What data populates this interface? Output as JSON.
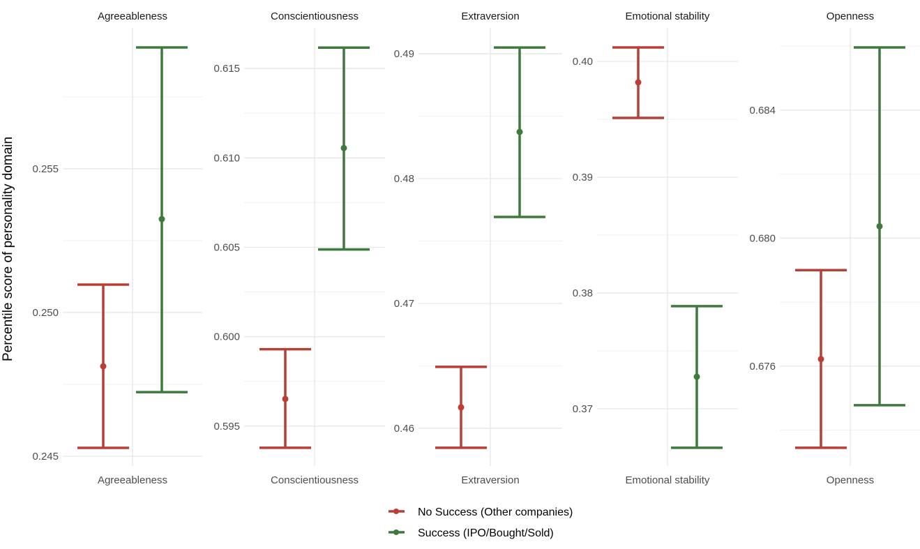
{
  "chart_data": {
    "type": "errorbar",
    "ylabel": "Percentile score of personality domain",
    "legend": {
      "placement": "bottom",
      "entries": [
        {
          "name": "No Success (Other companies)",
          "color": "#B93E36"
        },
        {
          "name": "Success (IPO/Bought/Sold)",
          "color": "#3E7A3E"
        }
      ]
    },
    "grid": true,
    "panels": [
      {
        "title": "Agreeableness",
        "xlabel": "Agreeableness",
        "ylim": [
          0.24466,
          0.2599
        ],
        "ticks": [
          0.245,
          0.25,
          0.255
        ],
        "tick_labels": [
          "0.245",
          "0.250",
          "0.255"
        ],
        "series": [
          {
            "mean": 0.24813,
            "lower": 0.24529,
            "upper": 0.25097
          },
          {
            "mean": 0.25325,
            "lower": 0.24723,
            "upper": 0.25922
          }
        ]
      },
      {
        "title": "Conscientiousness",
        "xlabel": "Conscientiousness",
        "ylim": [
          0.59277,
          0.61727
        ],
        "ticks": [
          0.595,
          0.6,
          0.605,
          0.61,
          0.615
        ],
        "tick_labels": [
          "0.595",
          "0.600",
          "0.605",
          "0.610",
          "0.615"
        ],
        "series": [
          {
            "mean": 0.59652,
            "lower": 0.59379,
            "upper": 0.5993
          },
          {
            "mean": 0.61055,
            "lower": 0.60488,
            "upper": 0.61617
          }
        ]
      },
      {
        "title": "Extraversion",
        "xlabel": "Extraversion",
        "ylim": [
          0.45698,
          0.49207
        ],
        "ticks": [
          0.46,
          0.47,
          0.48,
          0.49
        ],
        "tick_labels": [
          "0.46",
          "0.47",
          "0.48",
          "0.49"
        ],
        "series": [
          {
            "mean": 0.46168,
            "lower": 0.45844,
            "upper": 0.46492
          },
          {
            "mean": 0.48374,
            "lower": 0.47693,
            "upper": 0.4905
          }
        ]
      },
      {
        "title": "Emotional stability",
        "xlabel": "Emotional stability",
        "ylim": [
          0.36506,
          0.40289
        ],
        "ticks": [
          0.37,
          0.38,
          0.39,
          0.4
        ],
        "tick_labels": [
          "0.37",
          "0.38",
          "0.39",
          "0.40"
        ],
        "series": [
          {
            "mean": 0.39819,
            "lower": 0.39512,
            "upper": 0.4012
          },
          {
            "mean": 0.37277,
            "lower": 0.36663,
            "upper": 0.37886
          }
        ]
      },
      {
        "title": "Openness",
        "xlabel": "Openness",
        "ylim": [
          0.67288,
          0.68657
        ],
        "ticks": [
          0.676,
          0.68,
          0.684
        ],
        "tick_labels": [
          "0.676",
          "0.680",
          "0.684"
        ],
        "series": [
          {
            "mean": 0.67622,
            "lower": 0.67345,
            "upper": 0.679
          },
          {
            "mean": 0.68037,
            "lower": 0.67478,
            "upper": 0.68596
          }
        ]
      }
    ]
  }
}
